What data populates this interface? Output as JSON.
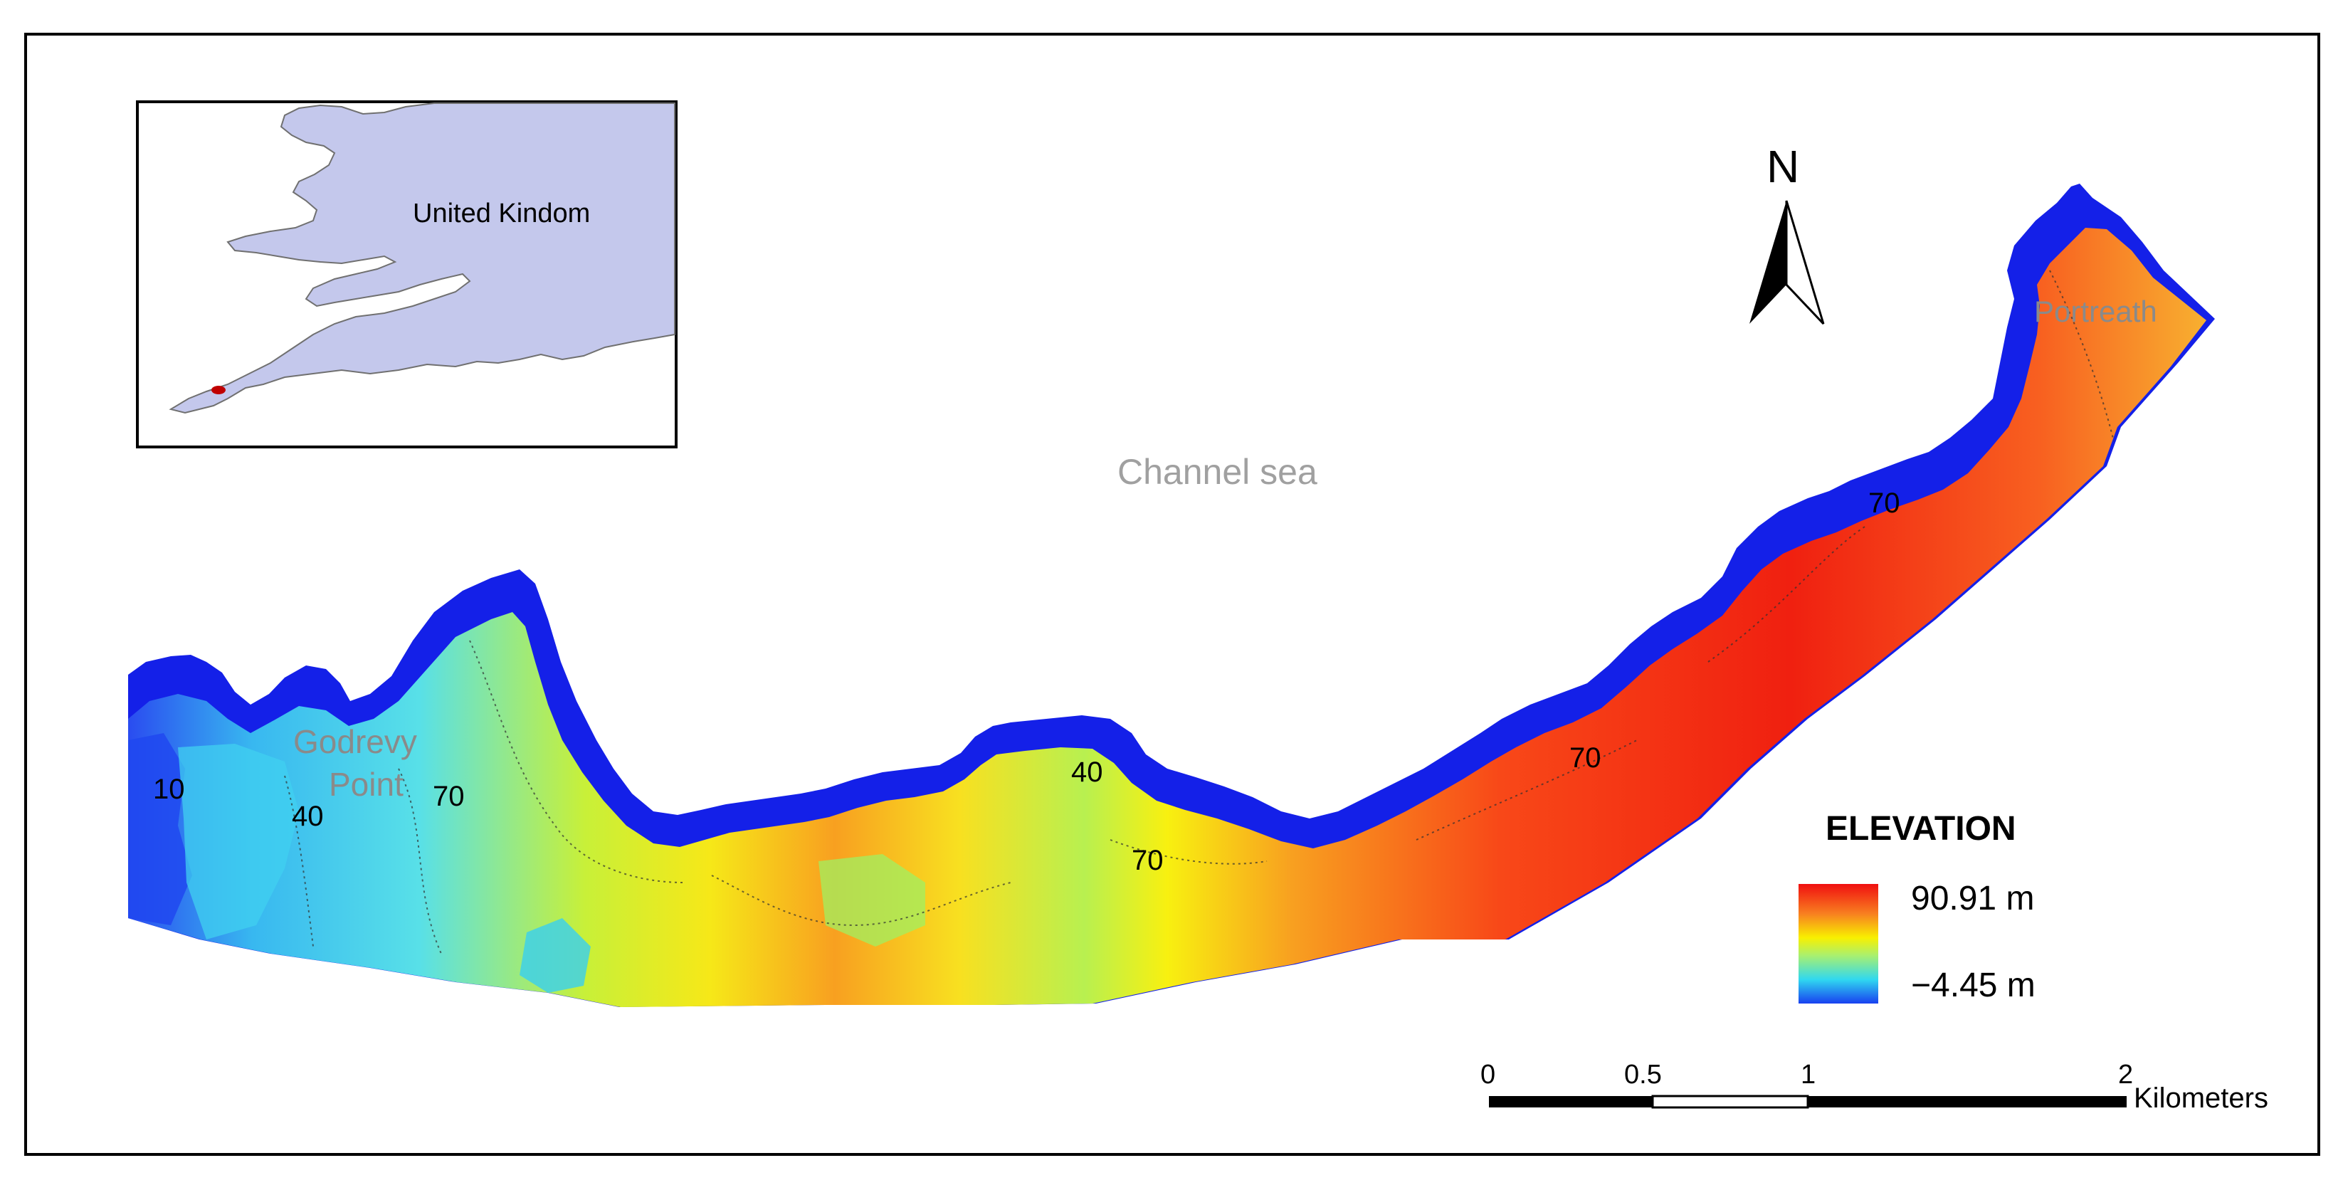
{
  "inset_map": {
    "country_label": "United Kindom"
  },
  "labels": {
    "sea": "Channel sea",
    "godrevy_line1": "Godrevy",
    "godrevy_line2": "Point",
    "portreath": "Portreath"
  },
  "contours": [
    "10",
    "40",
    "70",
    "40",
    "70",
    "70",
    "70"
  ],
  "north_arrow": {
    "label": "N"
  },
  "legend": {
    "title": "ELEVATION",
    "max_label": "90.91 m",
    "min_label": "−4.45 m"
  },
  "scale_bar": {
    "ticks": [
      "0",
      "0.5",
      "1",
      "2"
    ],
    "unit": "Kilometers"
  },
  "colors": {
    "deep": "#1010e0",
    "low": "#30d8f0",
    "mid": "#a8f070",
    "yellow": "#f8f000",
    "orange": "#f89020",
    "high": "#f01010",
    "land_inset": "#c4c8ec",
    "study_area_marker": "#c00000",
    "sea_label": "#a0a0a0",
    "place_label": "#8a8a8a"
  }
}
